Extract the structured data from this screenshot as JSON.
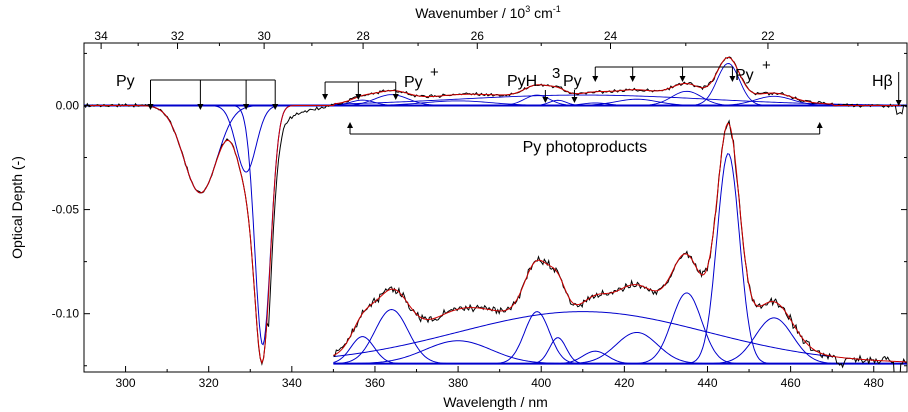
{
  "chart_data": {
    "type": "line",
    "xlabel": "Wavelength / nm",
    "ylabel": "Optical Depth (-)",
    "top_label_parts": [
      "Wavenumber / 10",
      "3",
      " cm",
      "-1"
    ],
    "xlim": [
      290,
      488
    ],
    "ylim": [
      -0.128,
      0.03
    ],
    "x_ticks": [
      300,
      320,
      340,
      360,
      380,
      400,
      420,
      440,
      460,
      480
    ],
    "y_ticks": [
      0.0,
      -0.05,
      -0.1
    ],
    "y_tick_labels": [
      "0.00",
      "-0.05",
      "-0.10"
    ],
    "top_ticks": [
      34,
      32,
      30,
      28,
      26,
      24,
      22
    ],
    "colors": {
      "observed": "#000000",
      "fit": "#cc0000",
      "components": "#0000cc",
      "baseline": "#0000cc"
    },
    "annotations": {
      "py": "Py",
      "py_plus": "Py",
      "plus": "+",
      "pyh": "PyH",
      "three_py_sup": "3",
      "three_py": "Py",
      "py_plus_right": "Py",
      "h_beta": "Hβ",
      "photoproducts": "Py photoproducts"
    },
    "bracket_py": [
      306,
      318,
      329,
      336
    ],
    "bracket_py_plus": [
      348,
      356,
      365
    ],
    "arrow_pyh": 401,
    "arrow_3py": 408,
    "bracket_right": [
      413,
      422,
      434,
      446
    ],
    "arrow_hbeta": 486,
    "photoproducts_range": [
      354,
      467
    ],
    "inset": {
      "x_range": [
        350,
        488
      ],
      "y_offset": -0.124,
      "scale": 5,
      "components": [
        {
          "center": 357,
          "amp": 0.013,
          "width": 2.8
        },
        {
          "center": 364,
          "amp": 0.026,
          "width": 4.0
        },
        {
          "center": 380,
          "amp": 0.011,
          "width": 8.0
        },
        {
          "center": 399,
          "amp": 0.025,
          "width": 3.0
        },
        {
          "center": 404,
          "amp": 0.0125,
          "width": 2.0
        },
        {
          "center": 410,
          "amp": 0.025,
          "width": 30
        },
        {
          "center": 413,
          "amp": 0.006,
          "width": 3.0
        },
        {
          "center": 423,
          "amp": 0.015,
          "width": 5.0
        },
        {
          "center": 435,
          "amp": 0.034,
          "width": 3.6
        },
        {
          "center": 445,
          "amp": 0.101,
          "width": 2.7
        },
        {
          "center": 456,
          "amp": 0.022,
          "width": 4.5
        }
      ]
    },
    "main_components": [
      {
        "center": 318,
        "amp": -0.042,
        "width": 4.0
      },
      {
        "center": 329,
        "amp": -0.032,
        "width": 2.4
      },
      {
        "center": 333,
        "amp": -0.115,
        "width": 1.9
      }
    ]
  }
}
